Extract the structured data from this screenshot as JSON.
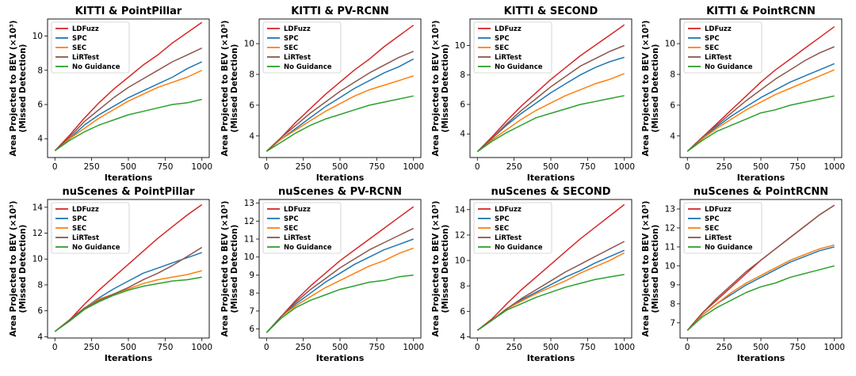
{
  "colors": {
    "LDFuzz": "#d62728",
    "SPC": "#1f77b4",
    "SEC": "#ff7f0e",
    "LiRTest": "#8c564b",
    "No Guidance": "#2ca02c"
  },
  "chart_data": [
    {
      "type": "line",
      "title": "KITTI & PointPillar",
      "xlabel": "Iterations",
      "ylabel": [
        "Area Projected to BEV (×10³)",
        "(Missed Detection)"
      ],
      "xticks": [
        0,
        250,
        500,
        750,
        1000
      ],
      "yticks": [
        4,
        6,
        8,
        10
      ],
      "xlim": [
        -50,
        1050
      ],
      "ylim": [
        2.9,
        11.0
      ],
      "legend": "top-left",
      "x": [
        0,
        100,
        200,
        300,
        400,
        500,
        600,
        700,
        800,
        900,
        1000
      ],
      "series": [
        {
          "name": "LDFuzz",
          "values": [
            3.3,
            4.2,
            5.2,
            6.1,
            6.9,
            7.6,
            8.3,
            8.9,
            9.6,
            10.2,
            10.8
          ]
        },
        {
          "name": "SPC",
          "values": [
            3.3,
            4.0,
            4.8,
            5.4,
            5.9,
            6.4,
            6.8,
            7.2,
            7.6,
            8.1,
            8.5
          ]
        },
        {
          "name": "SEC",
          "values": [
            3.3,
            4.0,
            4.6,
            5.2,
            5.7,
            6.2,
            6.6,
            7.0,
            7.3,
            7.6,
            8.0
          ]
        },
        {
          "name": "LiRTest",
          "values": [
            3.3,
            4.1,
            5.0,
            5.7,
            6.4,
            7.0,
            7.5,
            8.0,
            8.5,
            8.9,
            9.3
          ]
        },
        {
          "name": "No Guidance",
          "values": [
            3.3,
            3.9,
            4.4,
            4.8,
            5.1,
            5.4,
            5.6,
            5.8,
            6.0,
            6.1,
            6.3
          ]
        }
      ]
    },
    {
      "type": "line",
      "title": "KITTI & PV-RCNN",
      "xlabel": "Iterations",
      "ylabel": [
        "Area Projected to BEV (×10³)",
        "(Missed Detection)"
      ],
      "xticks": [
        0,
        250,
        500,
        750,
        1000
      ],
      "yticks": [
        4,
        6,
        8,
        10
      ],
      "xlim": [
        -50,
        1050
      ],
      "ylim": [
        2.6,
        11.6
      ],
      "legend": "top-left",
      "x": [
        0,
        100,
        200,
        300,
        400,
        500,
        600,
        700,
        800,
        900,
        1000
      ],
      "series": [
        {
          "name": "LDFuzz",
          "values": [
            3.0,
            3.9,
            4.9,
            5.8,
            6.7,
            7.5,
            8.3,
            9.0,
            9.8,
            10.5,
            11.2
          ]
        },
        {
          "name": "SPC",
          "values": [
            3.0,
            3.8,
            4.5,
            5.2,
            5.9,
            6.5,
            7.1,
            7.6,
            8.1,
            8.5,
            9.0
          ]
        },
        {
          "name": "SEC",
          "values": [
            3.0,
            3.8,
            4.4,
            5.0,
            5.6,
            6.1,
            6.6,
            7.0,
            7.3,
            7.6,
            7.9
          ]
        },
        {
          "name": "LiRTest",
          "values": [
            3.0,
            3.9,
            4.7,
            5.5,
            6.2,
            6.9,
            7.5,
            8.1,
            8.6,
            9.1,
            9.5
          ]
        },
        {
          "name": "No Guidance",
          "values": [
            3.0,
            3.6,
            4.2,
            4.7,
            5.1,
            5.4,
            5.7,
            6.0,
            6.2,
            6.4,
            6.6
          ]
        }
      ]
    },
    {
      "type": "line",
      "title": "KITTI & SECOND",
      "xlabel": "Iterations",
      "ylabel": [
        "Area Projected to BEV (×10³)",
        "(Missed Detection)"
      ],
      "xticks": [
        0,
        250,
        500,
        750,
        1000
      ],
      "yticks": [
        4,
        6,
        8,
        10
      ],
      "xlim": [
        -50,
        1050
      ],
      "ylim": [
        2.4,
        11.8
      ],
      "legend": "top-left",
      "x": [
        0,
        100,
        200,
        300,
        400,
        500,
        600,
        700,
        800,
        900,
        1000
      ],
      "series": [
        {
          "name": "LDFuzz",
          "values": [
            2.8,
            3.8,
            4.9,
            5.9,
            6.8,
            7.7,
            8.5,
            9.3,
            10.0,
            10.7,
            11.4
          ]
        },
        {
          "name": "SPC",
          "values": [
            2.8,
            3.7,
            4.6,
            5.4,
            6.1,
            6.8,
            7.4,
            8.0,
            8.5,
            8.9,
            9.2
          ]
        },
        {
          "name": "SEC",
          "values": [
            2.8,
            3.6,
            4.3,
            5.0,
            5.6,
            6.1,
            6.6,
            7.0,
            7.4,
            7.7,
            8.1
          ]
        },
        {
          "name": "LiRTest",
          "values": [
            2.8,
            3.7,
            4.7,
            5.6,
            6.4,
            7.2,
            7.9,
            8.6,
            9.1,
            9.6,
            10.0
          ]
        },
        {
          "name": "No Guidance",
          "values": [
            2.8,
            3.5,
            4.1,
            4.6,
            5.1,
            5.4,
            5.7,
            6.0,
            6.2,
            6.4,
            6.6
          ]
        }
      ]
    },
    {
      "type": "line",
      "title": "KITTI & PointRCNN",
      "xlabel": "Iterations",
      "ylabel": [
        "Area Projected to BEV (×10³)",
        "(Missed Detection)"
      ],
      "xticks": [
        0,
        250,
        500,
        750,
        1000
      ],
      "yticks": [
        4,
        6,
        8,
        10
      ],
      "xlim": [
        -50,
        1050
      ],
      "ylim": [
        2.6,
        11.6
      ],
      "legend": "top-left",
      "x": [
        0,
        100,
        200,
        300,
        400,
        500,
        600,
        700,
        800,
        900,
        1000
      ],
      "series": [
        {
          "name": "LDFuzz",
          "values": [
            3.0,
            3.9,
            4.8,
            5.7,
            6.6,
            7.5,
            8.3,
            9.0,
            9.7,
            10.4,
            11.1
          ]
        },
        {
          "name": "SPC",
          "values": [
            3.0,
            3.8,
            4.6,
            5.3,
            5.9,
            6.5,
            7.0,
            7.5,
            7.9,
            8.3,
            8.7
          ]
        },
        {
          "name": "SEC",
          "values": [
            3.0,
            3.8,
            4.5,
            5.1,
            5.7,
            6.2,
            6.7,
            7.1,
            7.5,
            7.9,
            8.3
          ]
        },
        {
          "name": "LiRTest",
          "values": [
            3.0,
            3.9,
            4.7,
            5.5,
            6.3,
            7.0,
            7.7,
            8.3,
            8.9,
            9.4,
            9.8
          ]
        },
        {
          "name": "No Guidance",
          "values": [
            3.0,
            3.7,
            4.3,
            4.7,
            5.1,
            5.5,
            5.7,
            6.0,
            6.2,
            6.4,
            6.6
          ]
        }
      ]
    },
    {
      "type": "line",
      "title": "nuScenes & PointPillar",
      "xlabel": "Iterations",
      "ylabel": [
        "Area Projected to BEV (×10³)",
        "(Missed Detection)"
      ],
      "xticks": [
        0,
        250,
        500,
        750,
        1000
      ],
      "yticks": [
        4,
        6,
        8,
        10,
        12,
        14
      ],
      "xlim": [
        -50,
        1050
      ],
      "ylim": [
        3.9,
        14.6
      ],
      "legend": "top-left",
      "x": [
        0,
        100,
        200,
        300,
        400,
        500,
        600,
        700,
        800,
        900,
        1000
      ],
      "series": [
        {
          "name": "LDFuzz",
          "values": [
            4.4,
            5.3,
            6.5,
            7.6,
            8.6,
            9.6,
            10.6,
            11.6,
            12.5,
            13.4,
            14.2
          ]
        },
        {
          "name": "SPC",
          "values": [
            4.4,
            5.3,
            6.2,
            7.0,
            7.7,
            8.3,
            8.9,
            9.3,
            9.7,
            10.1,
            10.5
          ]
        },
        {
          "name": "SEC",
          "values": [
            4.4,
            5.3,
            6.2,
            6.9,
            7.3,
            7.7,
            8.1,
            8.4,
            8.6,
            8.8,
            9.1
          ]
        },
        {
          "name": "LiRTest",
          "values": [
            4.4,
            5.3,
            6.2,
            6.8,
            7.3,
            7.8,
            8.4,
            8.9,
            9.5,
            10.2,
            10.9
          ]
        },
        {
          "name": "No Guidance",
          "values": [
            4.4,
            5.2,
            6.1,
            6.7,
            7.2,
            7.6,
            7.9,
            8.1,
            8.3,
            8.4,
            8.6
          ]
        }
      ]
    },
    {
      "type": "line",
      "title": "nuScenes & PV-RCNN",
      "xlabel": "Iterations",
      "ylabel": [
        "Area Projected to BEV (×10³)",
        "(Missed Detection)"
      ],
      "xticks": [
        0,
        250,
        500,
        750,
        1000
      ],
      "yticks": [
        6,
        7,
        8,
        9,
        10,
        11,
        12,
        13
      ],
      "xlim": [
        -50,
        1050
      ],
      "ylim": [
        5.5,
        13.2
      ],
      "legend": "top-left",
      "x": [
        0,
        100,
        200,
        300,
        400,
        500,
        600,
        700,
        800,
        900,
        1000
      ],
      "series": [
        {
          "name": "LDFuzz",
          "values": [
            5.8,
            6.7,
            7.6,
            8.4,
            9.1,
            9.8,
            10.4,
            11.0,
            11.6,
            12.2,
            12.8
          ]
        },
        {
          "name": "SPC",
          "values": [
            5.8,
            6.7,
            7.4,
            8.0,
            8.6,
            9.1,
            9.6,
            10.0,
            10.4,
            10.7,
            11.0
          ]
        },
        {
          "name": "SEC",
          "values": [
            5.8,
            6.7,
            7.3,
            7.8,
            8.3,
            8.7,
            9.1,
            9.5,
            9.8,
            10.2,
            10.5
          ]
        },
        {
          "name": "LiRTest",
          "values": [
            5.8,
            6.7,
            7.5,
            8.2,
            8.8,
            9.4,
            9.9,
            10.4,
            10.8,
            11.2,
            11.6
          ]
        },
        {
          "name": "No Guidance",
          "values": [
            5.8,
            6.6,
            7.2,
            7.6,
            7.9,
            8.2,
            8.4,
            8.6,
            8.7,
            8.9,
            9.0
          ]
        }
      ]
    },
    {
      "type": "line",
      "title": "nuScenes & SECOND",
      "xlabel": "Iterations",
      "ylabel": [
        "Area Projected to BEV (×10³)",
        "(Missed Detection)"
      ],
      "xticks": [
        0,
        250,
        500,
        750,
        1000
      ],
      "yticks": [
        4,
        6,
        8,
        10,
        12,
        14
      ],
      "xlim": [
        -50,
        1050
      ],
      "ylim": [
        3.9,
        14.8
      ],
      "legend": "top-left",
      "x": [
        0,
        100,
        200,
        300,
        400,
        500,
        600,
        700,
        800,
        900,
        1000
      ],
      "series": [
        {
          "name": "LDFuzz",
          "values": [
            4.5,
            5.4,
            6.6,
            7.7,
            8.7,
            9.7,
            10.7,
            11.7,
            12.6,
            13.5,
            14.4
          ]
        },
        {
          "name": "SPC",
          "values": [
            4.5,
            5.3,
            6.2,
            6.9,
            7.5,
            8.1,
            8.7,
            9.2,
            9.8,
            10.3,
            10.8
          ]
        },
        {
          "name": "SEC",
          "values": [
            4.5,
            5.3,
            6.2,
            6.8,
            7.4,
            7.9,
            8.4,
            9.0,
            9.5,
            10.0,
            10.6
          ]
        },
        {
          "name": "LiRTest",
          "values": [
            4.5,
            5.3,
            6.2,
            7.0,
            7.7,
            8.4,
            9.1,
            9.7,
            10.3,
            10.9,
            11.5
          ]
        },
        {
          "name": "No Guidance",
          "values": [
            4.5,
            5.3,
            6.1,
            6.6,
            7.1,
            7.5,
            7.9,
            8.2,
            8.5,
            8.7,
            8.9
          ]
        }
      ]
    },
    {
      "type": "line",
      "title": "nuScenes & PointRCNN",
      "xlabel": "Iterations",
      "ylabel": [
        "Area Projected to BEV (×10³)",
        "(Missed Detection)"
      ],
      "xticks": [
        0,
        250,
        500,
        750,
        1000
      ],
      "yticks": [
        7,
        8,
        9,
        10,
        11,
        12,
        13
      ],
      "xlim": [
        -50,
        1050
      ],
      "ylim": [
        6.2,
        13.5
      ],
      "legend": "top-left",
      "x": [
        0,
        100,
        200,
        300,
        400,
        500,
        600,
        700,
        800,
        900,
        1000
      ],
      "series": [
        {
          "name": "LDFuzz",
          "values": [
            6.6,
            7.5,
            8.2,
            8.9,
            9.6,
            10.3,
            10.9,
            11.5,
            12.1,
            12.7,
            13.2
          ]
        },
        {
          "name": "SPC",
          "values": [
            6.6,
            7.4,
            8.0,
            8.5,
            9.0,
            9.4,
            9.8,
            10.2,
            10.5,
            10.8,
            11.0
          ]
        },
        {
          "name": "SEC",
          "values": [
            6.6,
            7.4,
            8.0,
            8.6,
            9.1,
            9.5,
            9.9,
            10.3,
            10.6,
            10.9,
            11.1
          ]
        },
        {
          "name": "LiRTest",
          "values": [
            6.6,
            7.5,
            8.3,
            9.0,
            9.7,
            10.3,
            10.9,
            11.5,
            12.1,
            12.7,
            13.2
          ]
        },
        {
          "name": "No Guidance",
          "values": [
            6.6,
            7.3,
            7.8,
            8.2,
            8.6,
            8.9,
            9.1,
            9.4,
            9.6,
            9.8,
            10.0
          ]
        }
      ]
    }
  ]
}
